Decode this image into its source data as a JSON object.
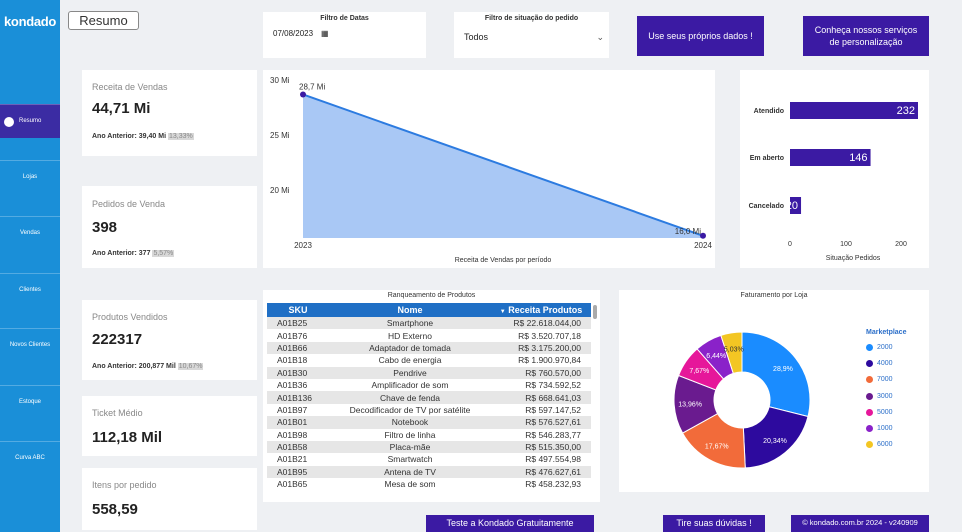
{
  "app": {
    "logo": "kondado",
    "page_button": "Resumo"
  },
  "sidebar": {
    "items": [
      {
        "label": "Resumo",
        "active": true
      },
      {
        "label": "Lojas"
      },
      {
        "label": "Vendas"
      },
      {
        "label": "Clientes"
      },
      {
        "label": "Novos Clientes"
      },
      {
        "label": "Estoque"
      },
      {
        "label": "Curva ABC"
      }
    ]
  },
  "filters": {
    "date_title": "Filtro de Datas",
    "date_value": "07/08/2023",
    "status_title": "Filtro de situação do pedido",
    "status_value": "Todos"
  },
  "buttons": {
    "own_data": "Use seus próprios dados !",
    "services": "Conheça nossos serviços de personalização",
    "try": "Teste a Kondado Gratuitamente",
    "doubts": "Tire suas dúvidas !",
    "footer": "© kondado.com.br 2024 - v240909"
  },
  "kpis": {
    "receita": {
      "label": "Receita de Vendas",
      "value": "44,71 Mi",
      "prev_label": "Ano Anterior: 39,40 Mi",
      "prev_pct": "13,33%"
    },
    "pedidos": {
      "label": "Pedidos de Venda",
      "value": "398",
      "prev_label": "Ano Anterior: 377",
      "prev_pct": "5,57%"
    },
    "produtos": {
      "label": "Produtos Vendidos",
      "value": "222317",
      "prev_label": "Ano Anterior: 200,877 Mil",
      "prev_pct": "10,67%"
    },
    "ticket": {
      "label": "Ticket Médio",
      "value": "112,18 Mil"
    },
    "itens": {
      "label": "Itens por pedido",
      "value": "558,59"
    }
  },
  "chart_data": [
    {
      "type": "area",
      "title": "Receita de Vendas por período",
      "x": [
        "2023",
        "2024"
      ],
      "values": [
        28.7,
        16.0
      ],
      "data_labels": [
        "28,7 Mi",
        "16,0 Mi"
      ],
      "y_ticks": [
        "20 Mi",
        "25 Mi",
        "30 Mi"
      ],
      "ylim": [
        15.8,
        30
      ],
      "color": "#a9c8f5",
      "line_color": "#2c7be0"
    },
    {
      "type": "bar",
      "orientation": "horizontal",
      "categories": [
        "Atendido",
        "Em aberto",
        "Cancelado"
      ],
      "values": [
        232,
        146,
        20
      ],
      "xlabel": "Situação Pedidos",
      "x_ticks": [
        "0",
        "100",
        "200"
      ],
      "xlim": [
        0,
        232
      ],
      "color": "#3b1aa3"
    },
    {
      "type": "pie",
      "title": "Faturamento por Loja",
      "legend_title": "Marketplace",
      "labels": [
        "2000",
        "4000",
        "7000",
        "3000",
        "5000",
        "1000",
        "6000"
      ],
      "values": [
        28.9,
        20.34,
        17.67,
        13.96,
        7.67,
        6.44,
        5.03
      ],
      "value_labels": [
        "28,9%",
        "20,34%",
        "17,67%",
        "13,96%",
        "7,67%",
        "6,44%",
        "5,03%"
      ],
      "colors": [
        "#1a8cff",
        "#2d0a9e",
        "#f26b3a",
        "#6a1b8f",
        "#e6179a",
        "#8a22c9",
        "#f3c623"
      ]
    }
  ],
  "product_table": {
    "title": "Ranqueamento de Produtos",
    "headers": [
      "SKU",
      "Nome",
      "Receita Produtos"
    ],
    "rows": [
      [
        "A01B25",
        "Smartphone",
        "R$ 22.618.044,00"
      ],
      [
        "A01B76",
        "HD Externo",
        "R$ 3.520.707,18"
      ],
      [
        "A01B66",
        "Adaptador de tomada",
        "R$ 3.175.200,00"
      ],
      [
        "A01B18",
        "Cabo de energia",
        "R$ 1.900.970,84"
      ],
      [
        "A01B30",
        "Pendrive",
        "R$ 760.570,00"
      ],
      [
        "A01B36",
        "Amplificador de som",
        "R$ 734.592,52"
      ],
      [
        "A01B136",
        "Chave de fenda",
        "R$ 668.641,03"
      ],
      [
        "A01B97",
        "Decodificador de TV por satélite",
        "R$ 597.147,52"
      ],
      [
        "A01B01",
        "Notebook",
        "R$ 576.527,61"
      ],
      [
        "A01B98",
        "Filtro de linha",
        "R$ 546.283,77"
      ],
      [
        "A01B58",
        "Placa-mãe",
        "R$ 515.350,00"
      ],
      [
        "A01B21",
        "Smartwatch",
        "R$ 497.554,98"
      ],
      [
        "A01B95",
        "Antena de TV",
        "R$ 476.627,61"
      ],
      [
        "A01B65",
        "Mesa de som",
        "R$ 458.232,93"
      ]
    ]
  }
}
